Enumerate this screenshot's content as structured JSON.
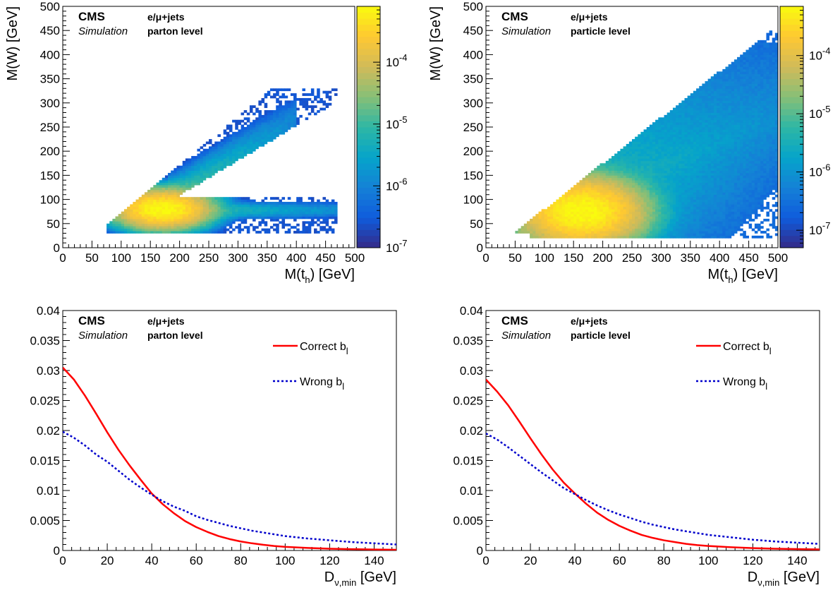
{
  "chart_data": [
    {
      "type": "heatmap",
      "panel": "top-left",
      "xlabel": "M(t",
      "xlabel_sub": "h",
      "xlabel_tail": ") [GeV]",
      "ylabel": "M(W) [GeV]",
      "xlim": [
        0,
        500
      ],
      "ylim": [
        0,
        500
      ],
      "x_ticks": [
        "0",
        "50",
        "100",
        "150",
        "200",
        "250",
        "300",
        "350",
        "400",
        "450",
        "500"
      ],
      "y_ticks": [
        "0",
        "50",
        "100",
        "150",
        "200",
        "250",
        "300",
        "350",
        "400",
        "450",
        "500"
      ],
      "z_scale": "log",
      "zlim": [
        1e-07,
        0.0008
      ],
      "z_ticks": [
        {
          "base": "10",
          "exp": "-7",
          "value": 1e-07
        },
        {
          "base": "10",
          "exp": "-6",
          "value": 1e-06
        },
        {
          "base": "10",
          "exp": "-5",
          "value": 1e-05
        },
        {
          "base": "10",
          "exp": "-4",
          "value": 0.0001
        }
      ],
      "peak": {
        "x": 170,
        "y": 80
      },
      "annotations": {
        "experiment": "CMS",
        "subtitle": "Simulation",
        "channel": "e/μ+jets",
        "level": "parton level"
      }
    },
    {
      "type": "heatmap",
      "panel": "top-right",
      "xlabel": "M(t",
      "xlabel_sub": "h",
      "xlabel_tail": ") [GeV]",
      "ylabel": "M(W) [GeV]",
      "xlim": [
        0,
        500
      ],
      "ylim": [
        0,
        500
      ],
      "x_ticks": [
        "0",
        "50",
        "100",
        "150",
        "200",
        "250",
        "300",
        "350",
        "400",
        "450",
        "500"
      ],
      "y_ticks": [
        "0",
        "50",
        "100",
        "150",
        "200",
        "250",
        "300",
        "350",
        "400",
        "450",
        "500"
      ],
      "z_scale": "log",
      "zlim": [
        5e-08,
        0.0007
      ],
      "z_ticks": [
        {
          "base": "10",
          "exp": "-7",
          "value": 1e-07
        },
        {
          "base": "10",
          "exp": "-6",
          "value": 1e-06
        },
        {
          "base": "10",
          "exp": "-5",
          "value": 1e-05
        },
        {
          "base": "10",
          "exp": "-4",
          "value": 0.0001
        }
      ],
      "peak": {
        "x": 165,
        "y": 75
      },
      "annotations": {
        "experiment": "CMS",
        "subtitle": "Simulation",
        "channel": "e/μ+jets",
        "level": "particle level"
      }
    },
    {
      "type": "line",
      "panel": "bottom-left",
      "xlabel": "D",
      "xlabel_sub": "ν,min",
      "xlabel_tail": " [GeV]",
      "ylabel": "",
      "xlim": [
        0,
        150
      ],
      "ylim": [
        0,
        0.04
      ],
      "x_ticks": [
        "0",
        "20",
        "40",
        "60",
        "80",
        "100",
        "120",
        "140"
      ],
      "y_ticks": [
        "0",
        "0.005",
        "0.01",
        "0.015",
        "0.02",
        "0.025",
        "0.03",
        "0.035",
        "0.04"
      ],
      "annotations": {
        "experiment": "CMS",
        "subtitle": "Simulation",
        "channel": "e/μ+jets",
        "level": "parton level"
      },
      "series": [
        {
          "name": "Correct b",
          "name_sub": "l",
          "color": "#ff0000",
          "style": "solid",
          "x": [
            0,
            5,
            10,
            15,
            20,
            25,
            30,
            35,
            40,
            45,
            50,
            55,
            60,
            65,
            70,
            75,
            80,
            85,
            90,
            95,
            100,
            110,
            120,
            130,
            140,
            150
          ],
          "y": [
            0.0305,
            0.0285,
            0.0258,
            0.0228,
            0.0197,
            0.0168,
            0.0142,
            0.0118,
            0.0095,
            0.0077,
            0.0062,
            0.0049,
            0.0039,
            0.0031,
            0.0024,
            0.0019,
            0.0015,
            0.0012,
            0.00095,
            0.00075,
            0.0006,
            0.00042,
            0.0003,
            0.00022,
            0.00016,
            0.00012
          ]
        },
        {
          "name": "Wrong b",
          "name_sub": "l",
          "color": "#0000cc",
          "style": "dotted",
          "x": [
            0,
            5,
            10,
            15,
            20,
            25,
            30,
            35,
            40,
            45,
            50,
            55,
            60,
            65,
            70,
            75,
            80,
            85,
            90,
            95,
            100,
            110,
            120,
            130,
            140,
            150
          ],
          "y": [
            0.0198,
            0.0188,
            0.0175,
            0.016,
            0.0148,
            0.0133,
            0.0118,
            0.0105,
            0.0093,
            0.0082,
            0.0073,
            0.0066,
            0.0057,
            0.0051,
            0.0046,
            0.0041,
            0.0037,
            0.0033,
            0.003,
            0.0027,
            0.0024,
            0.002,
            0.0017,
            0.0014,
            0.0012,
            0.001
          ]
        }
      ]
    },
    {
      "type": "line",
      "panel": "bottom-right",
      "xlabel": "D",
      "xlabel_sub": "ν,min",
      "xlabel_tail": " [GeV]",
      "ylabel": "",
      "xlim": [
        0,
        150
      ],
      "ylim": [
        0,
        0.04
      ],
      "x_ticks": [
        "0",
        "20",
        "40",
        "60",
        "80",
        "100",
        "120",
        "140"
      ],
      "y_ticks": [
        "0",
        "0.005",
        "0.01",
        "0.015",
        "0.02",
        "0.025",
        "0.03",
        "0.035",
        "0.04"
      ],
      "annotations": {
        "experiment": "CMS",
        "subtitle": "Simulation",
        "channel": "e/μ+jets",
        "level": "particle level"
      },
      "series": [
        {
          "name": "Correct b",
          "name_sub": "l",
          "color": "#ff0000",
          "style": "solid",
          "x": [
            0,
            5,
            10,
            15,
            20,
            25,
            30,
            35,
            40,
            45,
            50,
            55,
            60,
            65,
            70,
            75,
            80,
            85,
            90,
            95,
            100,
            110,
            120,
            130,
            140,
            150
          ],
          "y": [
            0.0285,
            0.0265,
            0.0242,
            0.0215,
            0.0187,
            0.016,
            0.0135,
            0.0113,
            0.0095,
            0.0078,
            0.0063,
            0.0051,
            0.0041,
            0.0033,
            0.0026,
            0.0021,
            0.0017,
            0.0014,
            0.0011,
            0.0009,
            0.00075,
            0.00055,
            0.0004,
            0.0003,
            0.00023,
            0.00018
          ]
        },
        {
          "name": "Wrong b",
          "name_sub": "l",
          "color": "#0000cc",
          "style": "dotted",
          "x": [
            0,
            5,
            10,
            15,
            20,
            25,
            30,
            35,
            40,
            45,
            50,
            55,
            60,
            65,
            70,
            75,
            80,
            85,
            90,
            95,
            100,
            110,
            120,
            130,
            140,
            150
          ],
          "y": [
            0.0195,
            0.0185,
            0.0172,
            0.0158,
            0.0144,
            0.013,
            0.0117,
            0.0104,
            0.0094,
            0.0084,
            0.0075,
            0.0067,
            0.006,
            0.0054,
            0.0048,
            0.0043,
            0.0039,
            0.0035,
            0.0032,
            0.0029,
            0.0026,
            0.0022,
            0.0018,
            0.0015,
            0.0013,
            0.0011
          ]
        }
      ]
    }
  ]
}
